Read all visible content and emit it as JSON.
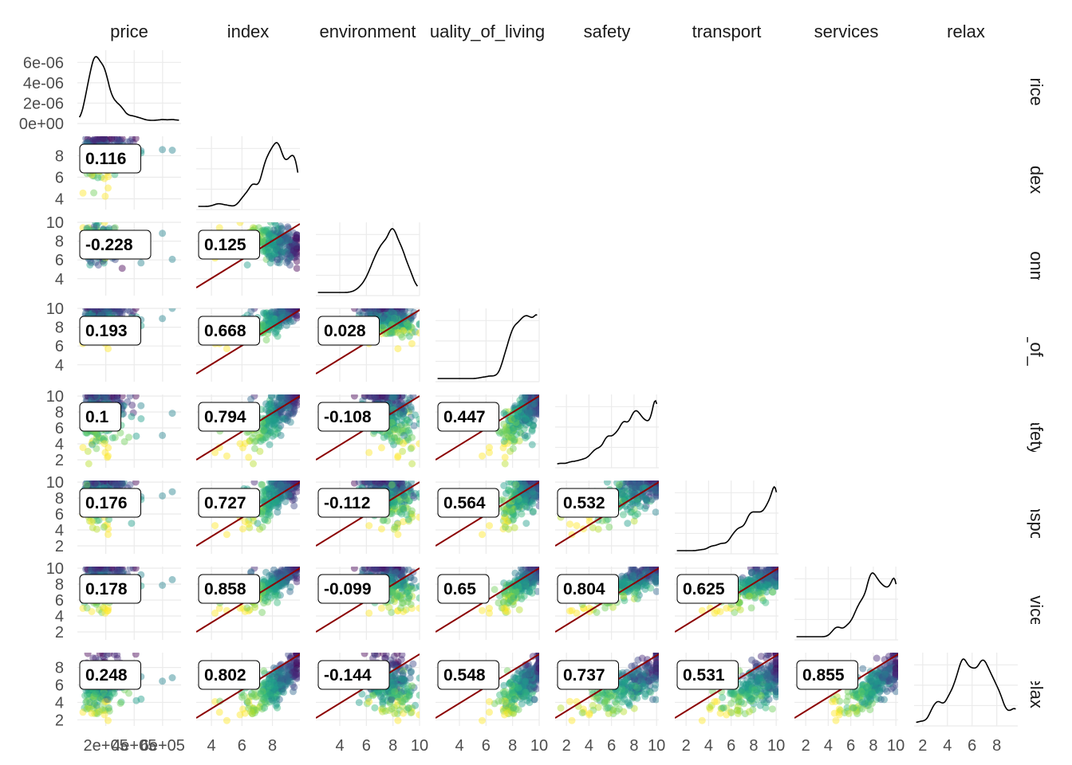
{
  "chart_data": {
    "type": "scatter",
    "variables": [
      "price",
      "index",
      "environment",
      "quality_of_living",
      "safety",
      "transport",
      "services",
      "relax"
    ],
    "column_strip_labels": [
      "price",
      "index",
      "environment",
      "uality_of_living",
      "safety",
      "transport",
      "services",
      "relax"
    ],
    "row_strip_labels": [
      "price",
      "index",
      "nvironme",
      "ility_of_liv",
      "safety",
      "transport",
      "services",
      "relax"
    ],
    "x_ticks": [
      [
        "2e+05",
        "4e+05",
        "6e+05"
      ],
      [
        "4",
        "6",
        "8"
      ],
      [
        "4",
        "6",
        "8",
        "10"
      ],
      [
        "4",
        "6",
        "8",
        "10"
      ],
      [
        "2",
        "4",
        "6",
        "8",
        "10"
      ],
      [
        "2",
        "4",
        "6",
        "8",
        "10"
      ],
      [
        "2",
        "4",
        "6",
        "8",
        "10"
      ],
      [
        "2",
        "4",
        "6",
        "8"
      ]
    ],
    "y_ticks": [
      [
        "0e+00",
        "2e-06",
        "4e-06",
        "6e-06"
      ],
      [
        "4",
        "6",
        "8"
      ],
      [
        "4",
        "6",
        "8",
        "10"
      ],
      [
        "4",
        "6",
        "8",
        "10"
      ],
      [
        "2",
        "4",
        "6",
        "8",
        "10"
      ],
      [
        "2",
        "4",
        "6",
        "8",
        "10"
      ],
      [
        "2",
        "4",
        "6",
        "8",
        "10"
      ],
      [
        "2",
        "4",
        "6",
        "8"
      ]
    ],
    "correlations": [
      {
        "row": "index",
        "col": "price",
        "value": "0.116"
      },
      {
        "row": "environment",
        "col": "price",
        "value": "-0.228"
      },
      {
        "row": "environment",
        "col": "index",
        "value": "0.125"
      },
      {
        "row": "quality_of_living",
        "col": "price",
        "value": "0.193"
      },
      {
        "row": "quality_of_living",
        "col": "index",
        "value": "0.668"
      },
      {
        "row": "quality_of_living",
        "col": "environment",
        "value": "0.028"
      },
      {
        "row": "safety",
        "col": "price",
        "value": "0.1"
      },
      {
        "row": "safety",
        "col": "index",
        "value": "0.794"
      },
      {
        "row": "safety",
        "col": "environment",
        "value": "-0.108"
      },
      {
        "row": "safety",
        "col": "quality_of_living",
        "value": "0.447"
      },
      {
        "row": "transport",
        "col": "price",
        "value": "0.176"
      },
      {
        "row": "transport",
        "col": "index",
        "value": "0.727"
      },
      {
        "row": "transport",
        "col": "environment",
        "value": "-0.112"
      },
      {
        "row": "transport",
        "col": "quality_of_living",
        "value": "0.564"
      },
      {
        "row": "transport",
        "col": "safety",
        "value": "0.532"
      },
      {
        "row": "services",
        "col": "price",
        "value": "0.178"
      },
      {
        "row": "services",
        "col": "index",
        "value": "0.858"
      },
      {
        "row": "services",
        "col": "environment",
        "value": "-0.099"
      },
      {
        "row": "services",
        "col": "quality_of_living",
        "value": "0.65"
      },
      {
        "row": "services",
        "col": "safety",
        "value": "0.804"
      },
      {
        "row": "services",
        "col": "transport",
        "value": "0.625"
      },
      {
        "row": "relax",
        "col": "price",
        "value": "0.248"
      },
      {
        "row": "relax",
        "col": "index",
        "value": "0.802"
      },
      {
        "row": "relax",
        "col": "environment",
        "value": "-0.144"
      },
      {
        "row": "relax",
        "col": "quality_of_living",
        "value": "0.548"
      },
      {
        "row": "relax",
        "col": "safety",
        "value": "0.737"
      },
      {
        "row": "relax",
        "col": "transport",
        "value": "0.531"
      },
      {
        "row": "relax",
        "col": "services",
        "value": "0.855"
      }
    ],
    "diagonal": "density",
    "lower": "scatter with y = x reference line and correlation label",
    "colors": {
      "reference_line": "#8b0000",
      "palette": [
        "#440154",
        "#31688e",
        "#35b779",
        "#fde725"
      ],
      "grid": "#ebebeb"
    },
    "grid": true
  }
}
